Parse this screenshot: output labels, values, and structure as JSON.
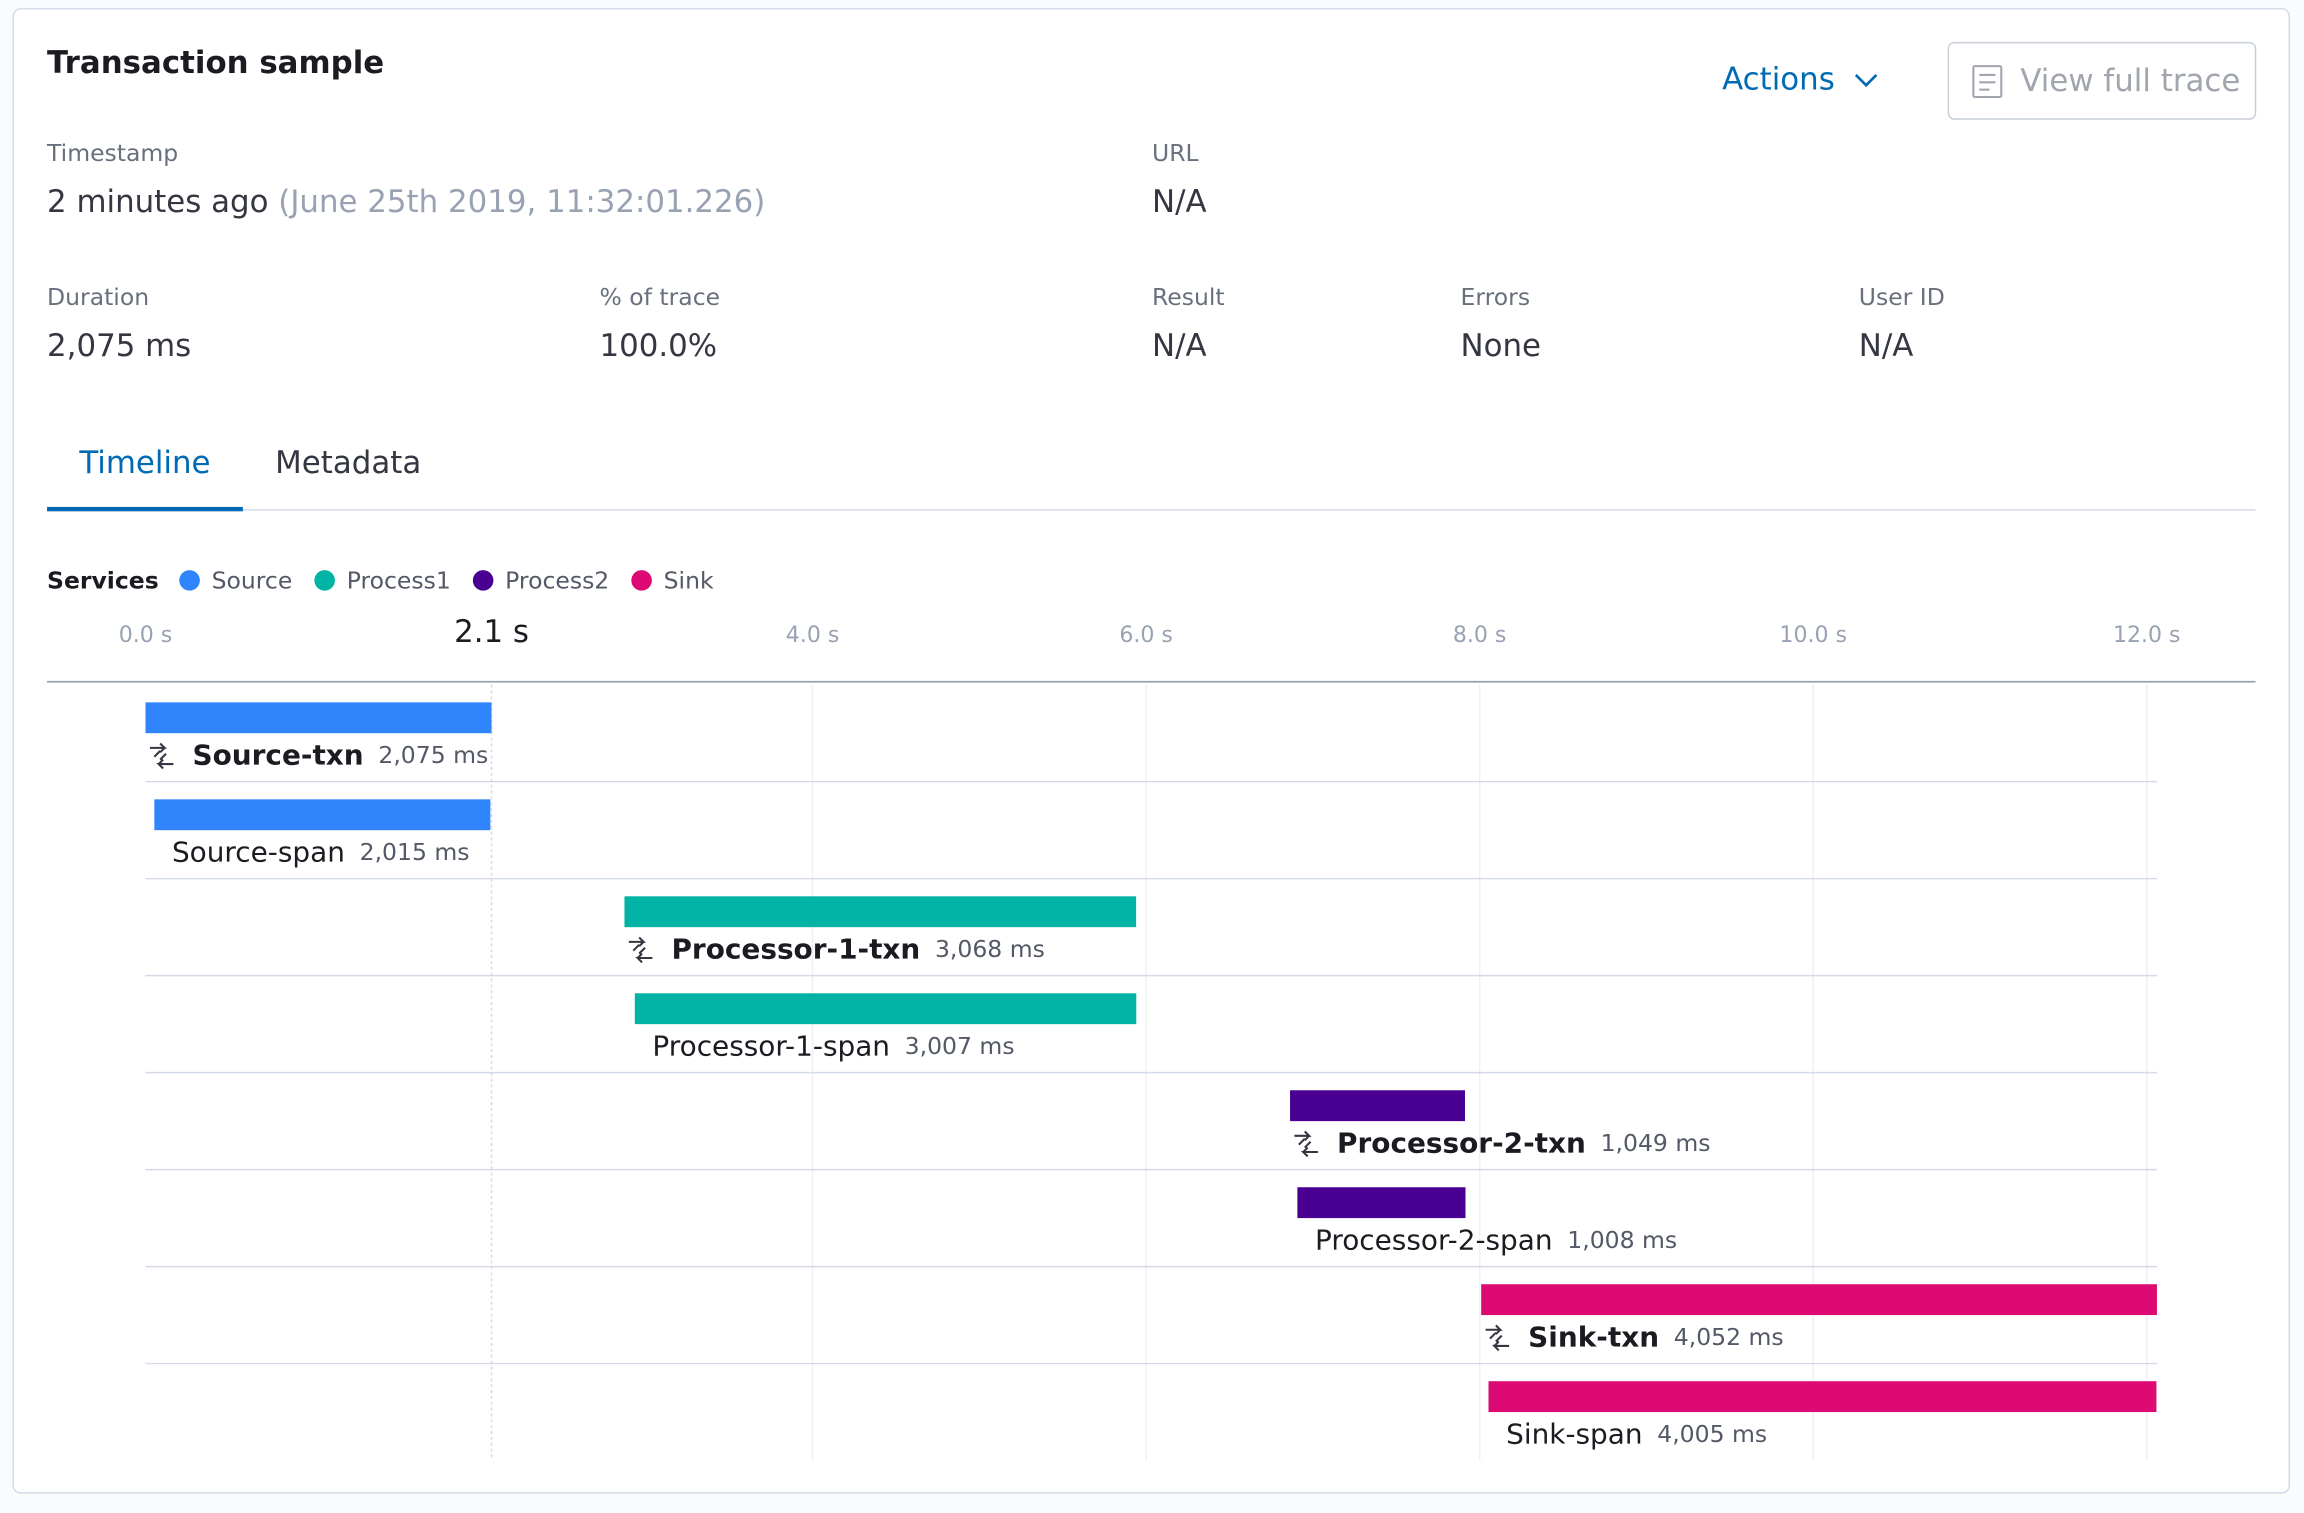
{
  "header": {
    "title": "Transaction sample",
    "actions": "Actions",
    "button": "View full trace"
  },
  "fields": [
    {
      "label": "Timestamp",
      "value": "2 minutes ago",
      "detail": "(June 25th 2019, 11:32:01.226)"
    },
    {
      "label": "URL",
      "value": "N/A"
    },
    {
      "label": "Duration",
      "value": "2,075 ms"
    },
    {
      "label": "% of trace",
      "value": "100.0%"
    },
    {
      "label": "Result",
      "value": "N/A"
    },
    {
      "label": "Errors",
      "value": "None"
    },
    {
      "label": "User ID",
      "value": "N/A"
    }
  ],
  "tabs": {
    "items": [
      "Timeline",
      "Metadata"
    ],
    "active": 0
  },
  "chart_data": {
    "type": "waterfall",
    "legend_title": "Services",
    "services": [
      {
        "name": "Source",
        "color": "#3185fc"
      },
      {
        "name": "Process1",
        "color": "#00b3a4"
      },
      {
        "name": "Process2",
        "color": "#490092"
      },
      {
        "name": "Sink",
        "color": "#dd0a73"
      }
    ],
    "xlim": [
      0,
      12000
    ],
    "xticks": [
      {
        "value": 0,
        "label": "0.0 s"
      },
      {
        "value": 4000,
        "label": "4.0 s"
      },
      {
        "value": 6000,
        "label": "6.0 s"
      },
      {
        "value": 8000,
        "label": "8.0 s"
      },
      {
        "value": 10000,
        "label": "10.0 s"
      },
      {
        "value": 12000,
        "label": "12.0 s"
      }
    ],
    "marker": {
      "value": 2075,
      "label": "2.1 s"
    },
    "items": [
      {
        "name": "Source-txn",
        "kind": "transaction",
        "service": 0,
        "start": 0,
        "duration": 2075,
        "duration_label": "2,075 ms"
      },
      {
        "name": "Source-span",
        "kind": "span",
        "service": 0,
        "start": 53,
        "duration": 2015,
        "duration_label": "2,015 ms"
      },
      {
        "name": "Processor-1-txn",
        "kind": "transaction",
        "service": 1,
        "start": 2872,
        "duration": 3068,
        "duration_label": "3,068 ms"
      },
      {
        "name": "Processor-1-span",
        "kind": "span",
        "service": 1,
        "start": 2934,
        "duration": 3007,
        "duration_label": "3,007 ms"
      },
      {
        "name": "Processor-2-txn",
        "kind": "transaction",
        "service": 2,
        "start": 6863,
        "duration": 1049,
        "duration_label": "1,049 ms"
      },
      {
        "name": "Processor-2-span",
        "kind": "span",
        "service": 2,
        "start": 6907,
        "duration": 1008,
        "duration_label": "1,008 ms"
      },
      {
        "name": "Sink-txn",
        "kind": "transaction",
        "service": 3,
        "start": 8009,
        "duration": 4052,
        "duration_label": "4,052 ms"
      },
      {
        "name": "Sink-span",
        "kind": "span",
        "service": 3,
        "start": 8053,
        "duration": 4005,
        "duration_label": "4,005 ms"
      }
    ]
  }
}
